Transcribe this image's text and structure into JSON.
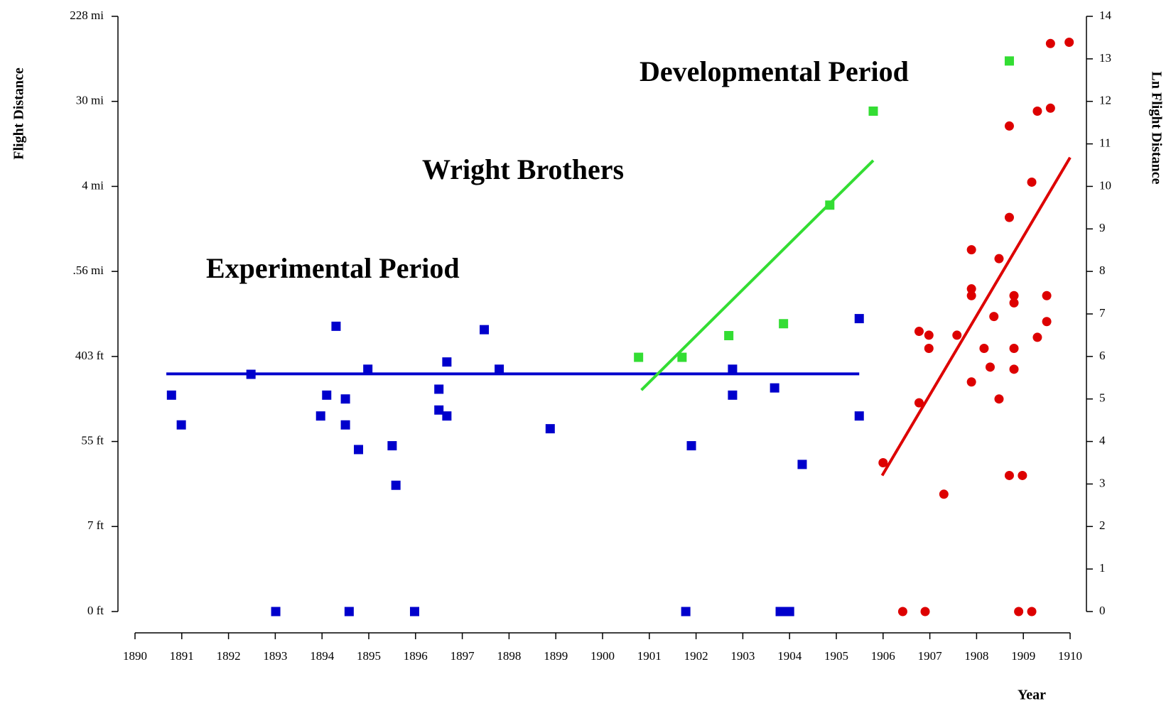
{
  "chart_data": {
    "type": "scatter",
    "y_label": "Flight Distance",
    "y2_label": "Ln Flight Distance",
    "x_label": "Year",
    "xlim": [
      1890,
      1910
    ],
    "xticks": [
      1890,
      1891,
      1892,
      1893,
      1894,
      1895,
      1896,
      1897,
      1898,
      1899,
      1900,
      1901,
      1902,
      1903,
      1904,
      1905,
      1906,
      1907,
      1908,
      1909,
      1910
    ],
    "ylim": [
      0,
      14
    ],
    "yticks": [
      {
        "value": 0,
        "label": "0 ft"
      },
      {
        "value": 2,
        "label": "7 ft"
      },
      {
        "value": 4,
        "label": "55 ft"
      },
      {
        "value": 6,
        "label": "403 ft"
      },
      {
        "value": 8,
        "label": ".56 mi"
      },
      {
        "value": 10,
        "label": "4 mi"
      },
      {
        "value": 12,
        "label": "30 mi"
      },
      {
        "value": 14,
        "label": "228 mi"
      }
    ],
    "y2lim": [
      0,
      14
    ],
    "y2ticks": [
      0,
      1,
      2,
      3,
      4,
      5,
      6,
      7,
      8,
      9,
      10,
      11,
      12,
      13,
      14
    ],
    "series": [
      {
        "name": "Experimental Period",
        "color": "#0000cc",
        "marker": "square",
        "axis": "y2",
        "x": [
          1890.78,
          1890.99,
          1892.48,
          1893.01,
          1893.97,
          1894.1,
          1894.3,
          1894.5,
          1894.5,
          1894.58,
          1894.78,
          1894.98,
          1895.5,
          1895.58,
          1895.98,
          1896.5,
          1896.5,
          1896.67,
          1896.67,
          1897.47,
          1897.79,
          1898.88,
          1901.78,
          1901.9,
          1902.78,
          1902.78,
          1903.68,
          1903.8,
          1903.9,
          1904.0,
          1904.27,
          1905.49,
          1905.49
        ],
        "values": [
          5.09,
          4.39,
          5.58,
          0,
          4.6,
          5.09,
          6.71,
          5.0,
          4.39,
          0,
          3.81,
          5.7,
          3.9,
          2.97,
          0,
          5.23,
          4.74,
          5.87,
          4.6,
          6.63,
          5.7,
          4.3,
          0,
          3.9,
          5.7,
          5.09,
          5.26,
          0,
          0,
          0,
          3.46,
          6.89,
          4.6
        ],
        "trend": {
          "x": [
            1890.67,
            1905.49
          ],
          "y": [
            5.59,
            5.59
          ]
        }
      },
      {
        "name": "Wright Brothers",
        "color": "#33dd33",
        "marker": "square",
        "axis": "y2",
        "x": [
          1900.77,
          1901.7,
          1902.7,
          1903.87,
          1904.86,
          1905.79,
          1908.7
        ],
        "values": [
          5.98,
          5.98,
          6.49,
          6.77,
          9.56,
          11.77,
          12.95
        ],
        "trend": {
          "x": [
            1900.83,
            1905.79
          ],
          "y": [
            5.21,
            10.61
          ]
        }
      },
      {
        "name": "Developmental Period",
        "color": "#dd0000",
        "marker": "circle",
        "axis": "y2",
        "x": [
          1906.0,
          1906.42,
          1906.77,
          1906.77,
          1906.98,
          1906.98,
          1906.9,
          1907.3,
          1907.58,
          1907.89,
          1907.89,
          1907.89,
          1907.89,
          1908.16,
          1908.29,
          1908.37,
          1908.48,
          1908.48,
          1908.7,
          1908.7,
          1908.7,
          1908.8,
          1908.8,
          1908.8,
          1908.8,
          1908.9,
          1908.98,
          1909.18,
          1909.18,
          1909.3,
          1909.3,
          1909.5,
          1909.5,
          1909.58,
          1909.58,
          1909.98
        ],
        "values": [
          3.5,
          0,
          6.59,
          4.91,
          6.5,
          6.19,
          0,
          2.76,
          6.5,
          8.51,
          7.59,
          7.43,
          5.4,
          6.19,
          5.75,
          6.94,
          8.3,
          5.0,
          9.27,
          11.42,
          3.2,
          7.43,
          7.26,
          6.19,
          5.7,
          0,
          3.2,
          0,
          10.1,
          11.77,
          6.45,
          7.43,
          6.82,
          11.84,
          13.36,
          13.39
        ],
        "trend": {
          "x": [
            1905.98,
            1910
          ],
          "y": [
            3.2,
            10.68
          ]
        }
      }
    ]
  }
}
